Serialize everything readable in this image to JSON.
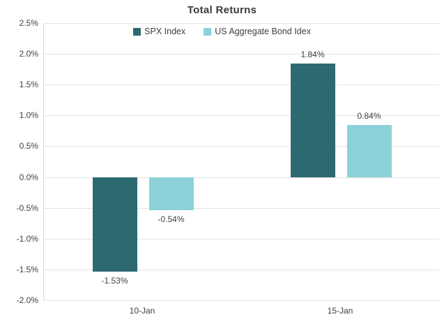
{
  "chart_data": {
    "type": "bar",
    "title": "Total Returns",
    "categories": [
      "10-Jan",
      "15-Jan"
    ],
    "series": [
      {
        "name": "SPX Index",
        "color": "#2d6a70",
        "values": [
          -1.53,
          1.84
        ],
        "labels": [
          "-1.53%",
          "1.84%"
        ]
      },
      {
        "name": "US Aggregate Bond Idex",
        "color": "#8bd2d8",
        "values": [
          -0.54,
          0.84
        ],
        "labels": [
          "-0.54%",
          "0.84%"
        ]
      }
    ],
    "ylim": [
      -2.0,
      2.5
    ],
    "yticks": [
      2.5,
      2.0,
      1.5,
      1.0,
      0.5,
      0.0,
      -0.5,
      -1.0,
      -1.5,
      -2.0
    ],
    "ytick_labels": [
      "2.5%",
      "2.0%",
      "1.5%",
      "1.0%",
      "0.5%",
      "0.0%",
      "-0.5%",
      "-1.0%",
      "-1.5%",
      "-2.0%"
    ],
    "grid": true,
    "legend_position": "top-center",
    "background_color": "#ffffff",
    "gridline_color": "#e4e4e4",
    "text_color": "#404040"
  }
}
